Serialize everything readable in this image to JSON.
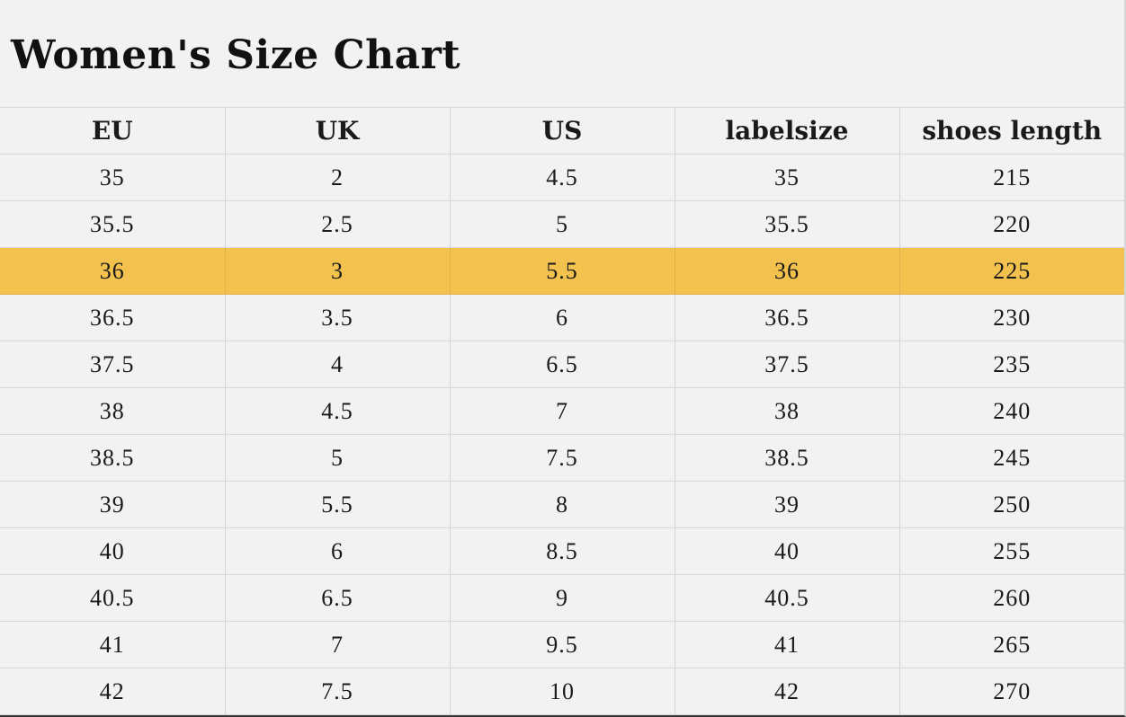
{
  "title": "Women's Size Chart",
  "highlight_color": "#f2c14e",
  "highlight_row_index": 2,
  "columns": [
    "EU",
    "UK",
    "US",
    "labelsize",
    "shoes length"
  ],
  "rows": [
    [
      "35",
      "2",
      "4.5",
      "35",
      "215"
    ],
    [
      "35.5",
      "2.5",
      "5",
      "35.5",
      "220"
    ],
    [
      "36",
      "3",
      "5.5",
      "36",
      "225"
    ],
    [
      "36.5",
      "3.5",
      "6",
      "36.5",
      "230"
    ],
    [
      "37.5",
      "4",
      "6.5",
      "37.5",
      "235"
    ],
    [
      "38",
      "4.5",
      "7",
      "38",
      "240"
    ],
    [
      "38.5",
      "5",
      "7.5",
      "38.5",
      "245"
    ],
    [
      "39",
      "5.5",
      "8",
      "39",
      "250"
    ],
    [
      "40",
      "6",
      "8.5",
      "40",
      "255"
    ],
    [
      "40.5",
      "6.5",
      "9",
      "40.5",
      "260"
    ],
    [
      "41",
      "7",
      "9.5",
      "41",
      "265"
    ],
    [
      "42",
      "7.5",
      "10",
      "42",
      "270"
    ]
  ]
}
